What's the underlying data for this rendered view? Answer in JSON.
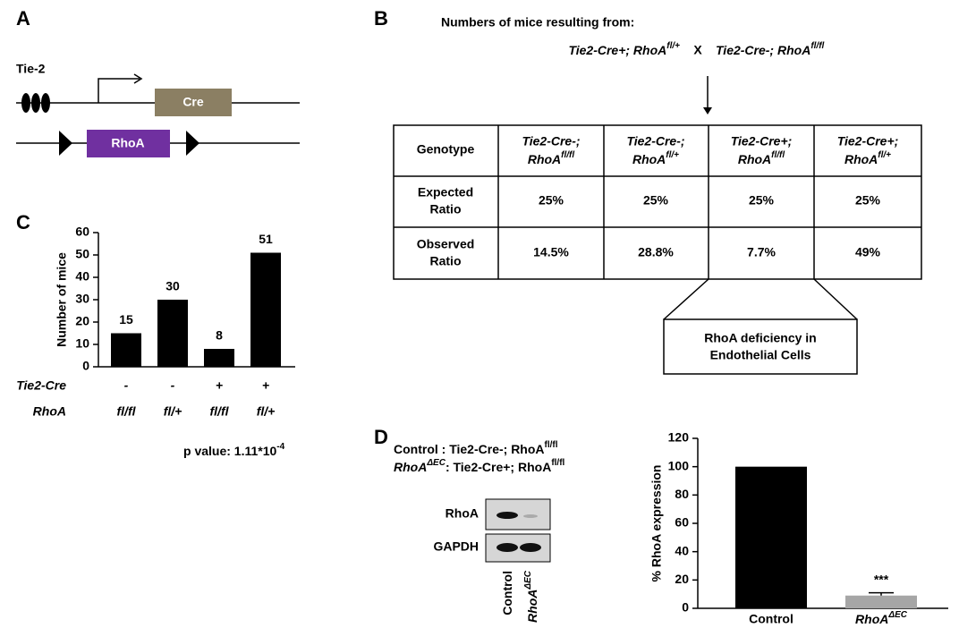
{
  "panel_a": {
    "label": "A",
    "promoter": "Tie-2",
    "gene1": "Cre",
    "gene2": "RhoA"
  },
  "panel_b": {
    "label": "B",
    "title": "Numbers of mice resulting from:",
    "cross": {
      "left": {
        "text": "Tie2-Cre+; RhoA",
        "sup": "fl/+"
      },
      "operator": "X",
      "right": {
        "text": "Tie2-Cre-; RhoA",
        "sup": "fl/fl"
      }
    },
    "table": {
      "header": [
        "Genotype",
        {
          "line1": "Tie2-Cre-;",
          "line2": "RhoA",
          "sup": "fl/fl"
        },
        {
          "line1": "Tie2-Cre-;",
          "line2": "RhoA",
          "sup": "fl/+"
        },
        {
          "line1": "Tie2-Cre+;",
          "line2": "RhoA",
          "sup": "fl/fl"
        },
        {
          "line1": "Tie2-Cre+;",
          "line2": "RhoA",
          "sup": "fl/+"
        }
      ],
      "rows": [
        {
          "label": [
            "Expected",
            "Ratio"
          ],
          "values": [
            "25%",
            "25%",
            "25%",
            "25%"
          ]
        },
        {
          "label": [
            "Observed",
            "Ratio"
          ],
          "values": [
            "14.5%",
            "28.8%",
            "7.7%",
            "49%"
          ]
        }
      ]
    },
    "callout": [
      "RhoA deficiency in",
      "Endothelial Cells"
    ]
  },
  "panel_c": {
    "label": "C",
    "annotation": {
      "text": "p value: 1.11*10",
      "sup": "-4"
    }
  },
  "panel_d": {
    "label": "D",
    "legend": [
      {
        "name": "Control",
        "text": " : Tie2-Cre-; RhoA",
        "sup": "fl/fl"
      },
      {
        "name": "RhoA",
        "name_sup": "ΔEC",
        "text": ": Tie2-Cre+; RhoA",
        "sup": "fl/fl"
      }
    ],
    "blot_rows": [
      "RhoA",
      "GAPDH"
    ],
    "lanes": [
      {
        "text": "Control"
      },
      {
        "text": "RhoA",
        "sup": "ΔEC"
      }
    ]
  },
  "chart_data": [
    {
      "type": "bar",
      "y_label": "Number of mice",
      "x_label_rows": [
        {
          "name": "Tie2-Cre",
          "labels": [
            "-",
            "-",
            "+",
            "+"
          ]
        },
        {
          "name": "RhoA",
          "labels": [
            "fl/fl",
            "fl/+",
            "fl/fl",
            "fl/+"
          ]
        }
      ],
      "values": [
        15,
        30,
        8,
        51
      ],
      "color": "#000000",
      "ylim": [
        0,
        60
      ],
      "yticks": [
        0,
        10,
        20,
        30,
        40,
        50,
        60
      ]
    },
    {
      "type": "bar",
      "y_label": "% RhoA expression",
      "categories": [
        "Control",
        {
          "text": "RhoA",
          "sup": "ΔEC"
        }
      ],
      "values": [
        100,
        9
      ],
      "errors": [
        null,
        2
      ],
      "colors": [
        "#000000",
        "#a6a6a6"
      ],
      "ylim": [
        0,
        120
      ],
      "yticks": [
        0,
        20,
        40,
        60,
        80,
        100,
        120
      ],
      "annotation": "***"
    }
  ]
}
